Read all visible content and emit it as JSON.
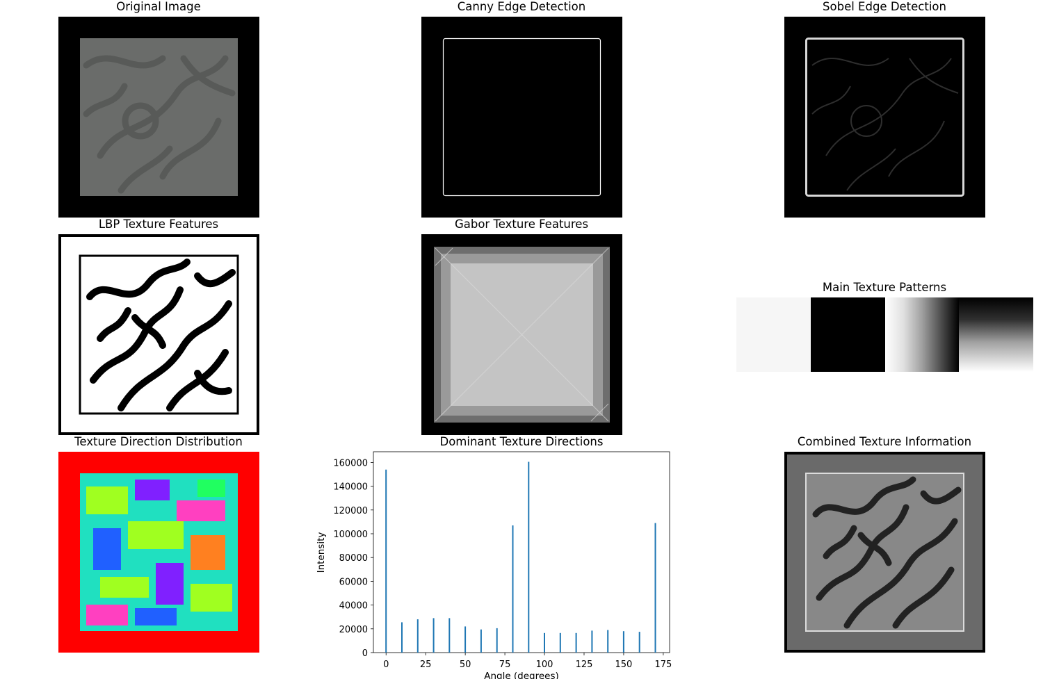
{
  "panels": {
    "original": {
      "title": "Original Image"
    },
    "canny": {
      "title": "Canny Edge Detection"
    },
    "sobel": {
      "title": "Sobel Edge Detection"
    },
    "lbp": {
      "title": "LBP Texture Features"
    },
    "gabor": {
      "title": "Gabor Texture Features"
    },
    "patterns": {
      "title": "Main Texture Patterns"
    },
    "direction": {
      "title": "Texture Direction Distribution"
    },
    "dominant": {
      "title": "Dominant Texture Directions"
    },
    "combined": {
      "title": "Combined Texture Information"
    }
  },
  "chart_data": {
    "type": "bar",
    "title": "Dominant Texture Directions",
    "xlabel": "Angle (degrees)",
    "ylabel": "Intensity",
    "x": [
      0,
      10,
      20,
      30,
      40,
      50,
      60,
      70,
      80,
      90,
      100,
      110,
      120,
      130,
      140,
      150,
      160,
      170
    ],
    "values": [
      154000,
      25500,
      28000,
      29000,
      29000,
      22000,
      19500,
      20500,
      107000,
      160500,
      16500,
      16500,
      16500,
      18500,
      19000,
      18000,
      17500,
      109000
    ],
    "xlim": [
      -8,
      179
    ],
    "ylim": [
      0,
      169000
    ],
    "xticks": [
      "0",
      "25",
      "50",
      "75",
      "100",
      "125",
      "150",
      "175"
    ],
    "yticks": [
      "0",
      "20000",
      "40000",
      "60000",
      "80000",
      "100000",
      "120000",
      "140000",
      "160000"
    ],
    "bar_color": "#1f77b4",
    "grid": false
  }
}
